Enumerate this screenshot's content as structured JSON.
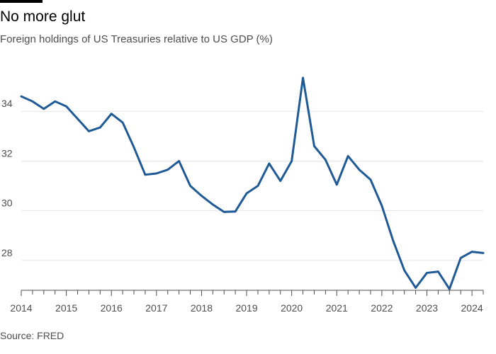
{
  "title": "No more glut",
  "subtitle": "Foreign holdings of US Treasuries relative to US GDP (%)",
  "source": "Source: FRED",
  "colors": {
    "line": "#1f5a96",
    "grid": "#e6e6e6",
    "axis": "#4d4d4d",
    "accent_bar": "#000000"
  },
  "chart_data": {
    "type": "line",
    "title": "No more glut",
    "subtitle": "Foreign holdings of US Treasuries relative to US GDP (%)",
    "xlabel": "",
    "ylabel": "",
    "xlim": [
      2014,
      2024.25
    ],
    "ylim": [
      26.8,
      36.2
    ],
    "y_ticks": [
      28,
      30,
      32,
      34
    ],
    "x_ticks": [
      2014,
      2015,
      2016,
      2017,
      2018,
      2019,
      2020,
      2021,
      2022,
      2023,
      2024
    ],
    "x_tick_labels": [
      "2014",
      "2015",
      "2016",
      "2017",
      "2018",
      "2019",
      "2020",
      "2021",
      "2022",
      "2023",
      "2024"
    ],
    "grid": "horizontal",
    "legend": "none",
    "series": [
      {
        "x": [
          2014.0,
          2014.25,
          2014.5,
          2014.75,
          2015.0,
          2015.25,
          2015.5,
          2015.75,
          2016.0,
          2016.25,
          2016.5,
          2016.75,
          2017.0,
          2017.25,
          2017.5,
          2017.75,
          2018.0,
          2018.25,
          2018.5,
          2018.75,
          2019.0,
          2019.25,
          2019.5,
          2019.75,
          2020.0,
          2020.25,
          2020.5,
          2020.75,
          2021.0,
          2021.25,
          2021.5,
          2021.75,
          2022.0,
          2022.25,
          2022.5,
          2022.75,
          2023.0,
          2023.25,
          2023.5,
          2023.75,
          2024.0,
          2024.25
        ],
        "values": [
          34.6,
          34.4,
          34.1,
          34.4,
          34.2,
          33.7,
          33.2,
          33.35,
          33.9,
          33.55,
          32.55,
          31.45,
          31.5,
          31.65,
          32.0,
          31.0,
          30.6,
          30.25,
          29.95,
          29.97,
          30.7,
          31.0,
          31.9,
          31.2,
          32.0,
          35.35,
          32.6,
          32.05,
          31.05,
          32.2,
          31.65,
          31.25,
          30.2,
          28.8,
          27.6,
          26.9,
          27.5,
          27.55,
          26.85,
          28.1,
          28.35,
          28.3
        ]
      }
    ]
  }
}
